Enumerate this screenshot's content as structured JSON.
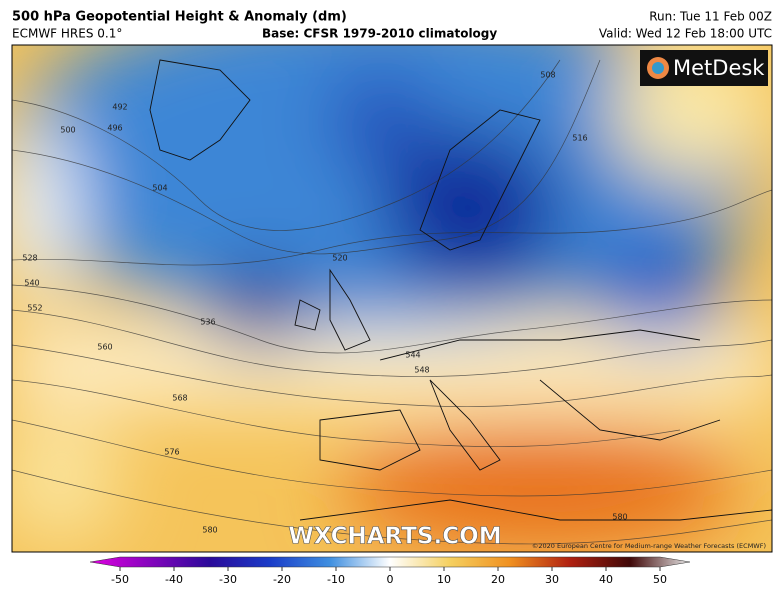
{
  "header": {
    "title": "500 hPa Geopotential Height & Anomaly (dm)",
    "model": "ECMWF HRES 0.1°",
    "base": "Base: CFSR 1979-2010 climatology",
    "run": "Run: Tue 11 Feb 00Z",
    "valid": "Valid: Wed 12 Feb 18:00 UTC"
  },
  "map": {
    "logo": "MetDesk",
    "watermark": "WXCHARTS.COM",
    "copyright": "©2020 European Centre for Medium-range Weather Forecasts (ECMWF)",
    "contour_labels": [
      492,
      496,
      500,
      504,
      508,
      516,
      520,
      528,
      540,
      552,
      536,
      560,
      544,
      548,
      568,
      576,
      580,
      580
    ]
  },
  "colorbar": {
    "ticks": [
      -50,
      -40,
      -30,
      -20,
      -10,
      0,
      10,
      20,
      30,
      40,
      50
    ]
  }
}
